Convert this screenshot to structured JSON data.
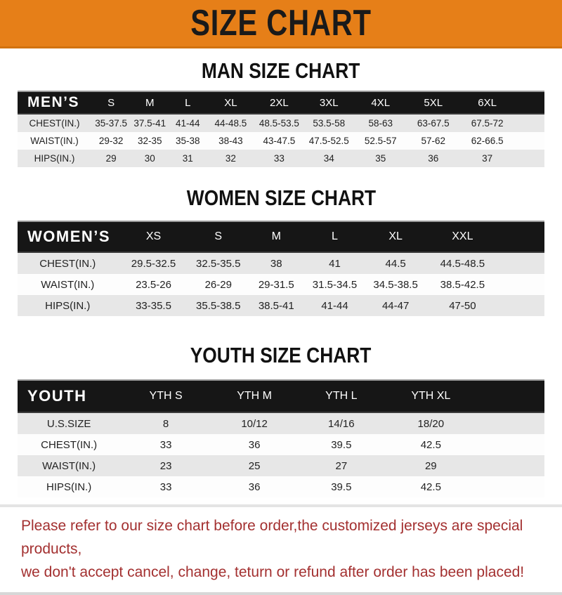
{
  "banner": {
    "title": "SIZE CHART"
  },
  "colors": {
    "banner_bg": "#E67F18",
    "bar_bg": "#161616",
    "row_stripe": "#E7E7E7",
    "note_color": "#A33030"
  },
  "sections": [
    {
      "title": "MAN SIZE CHART",
      "header_label": "MEN’S",
      "columns": [
        "S",
        "M",
        "L",
        "XL",
        "2XL",
        "3XL",
        "4XL",
        "5XL",
        "6XL"
      ],
      "rows": [
        {
          "label": "CHEST(IN.)",
          "values": [
            "35-37.5",
            "37.5-41",
            "41-44",
            "44-48.5",
            "48.5-53.5",
            "53.5-58",
            "58-63",
            "63-67.5",
            "67.5-72"
          ]
        },
        {
          "label": "WAIST(IN.)",
          "values": [
            "29-32",
            "32-35",
            "35-38",
            "38-43",
            "43-47.5",
            "47.5-52.5",
            "52.5-57",
            "57-62",
            "62-66.5"
          ]
        },
        {
          "label": "HIPS(IN.)",
          "values": [
            "29",
            "30",
            "31",
            "32",
            "33",
            "34",
            "35",
            "36",
            "37"
          ]
        }
      ]
    },
    {
      "title": "WOMEN SIZE CHART",
      "header_label": "WOMEN’S",
      "columns": [
        "XS",
        "S",
        "M",
        "L",
        "XL",
        "XXL"
      ],
      "rows": [
        {
          "label": "CHEST(IN.)",
          "values": [
            "29.5-32.5",
            "32.5-35.5",
            "38",
            "41",
            "44.5",
            "44.5-48.5"
          ]
        },
        {
          "label": "WAIST(IN.)",
          "values": [
            "23.5-26",
            "26-29",
            "29-31.5",
            "31.5-34.5",
            "34.5-38.5",
            "38.5-42.5"
          ]
        },
        {
          "label": "HIPS(IN.)",
          "values": [
            "33-35.5",
            "35.5-38.5",
            "38.5-41",
            "41-44",
            "44-47",
            "47-50"
          ]
        }
      ]
    },
    {
      "title": "YOUTH SIZE CHART",
      "header_label": "YOUTH",
      "columns": [
        "YTH S",
        "YTH M",
        "YTH L",
        "YTH XL"
      ],
      "rows": [
        {
          "label": "U.S.SIZE",
          "values": [
            "8",
            "10/12",
            "14/16",
            "18/20"
          ]
        },
        {
          "label": "CHEST(IN.)",
          "values": [
            "33",
            "36",
            "39.5",
            "42.5"
          ]
        },
        {
          "label": "WAIST(IN.)",
          "values": [
            "23",
            "25",
            "27",
            "29"
          ]
        },
        {
          "label": "HIPS(IN.)",
          "values": [
            "33",
            "36",
            "39.5",
            "42.5"
          ]
        }
      ]
    }
  ],
  "footer": {
    "line1": "Please refer to our size chart before order,the customized jerseys are special products,",
    "line2": "we don't accept cancel, change, teturn or refund after order has been placed!"
  }
}
